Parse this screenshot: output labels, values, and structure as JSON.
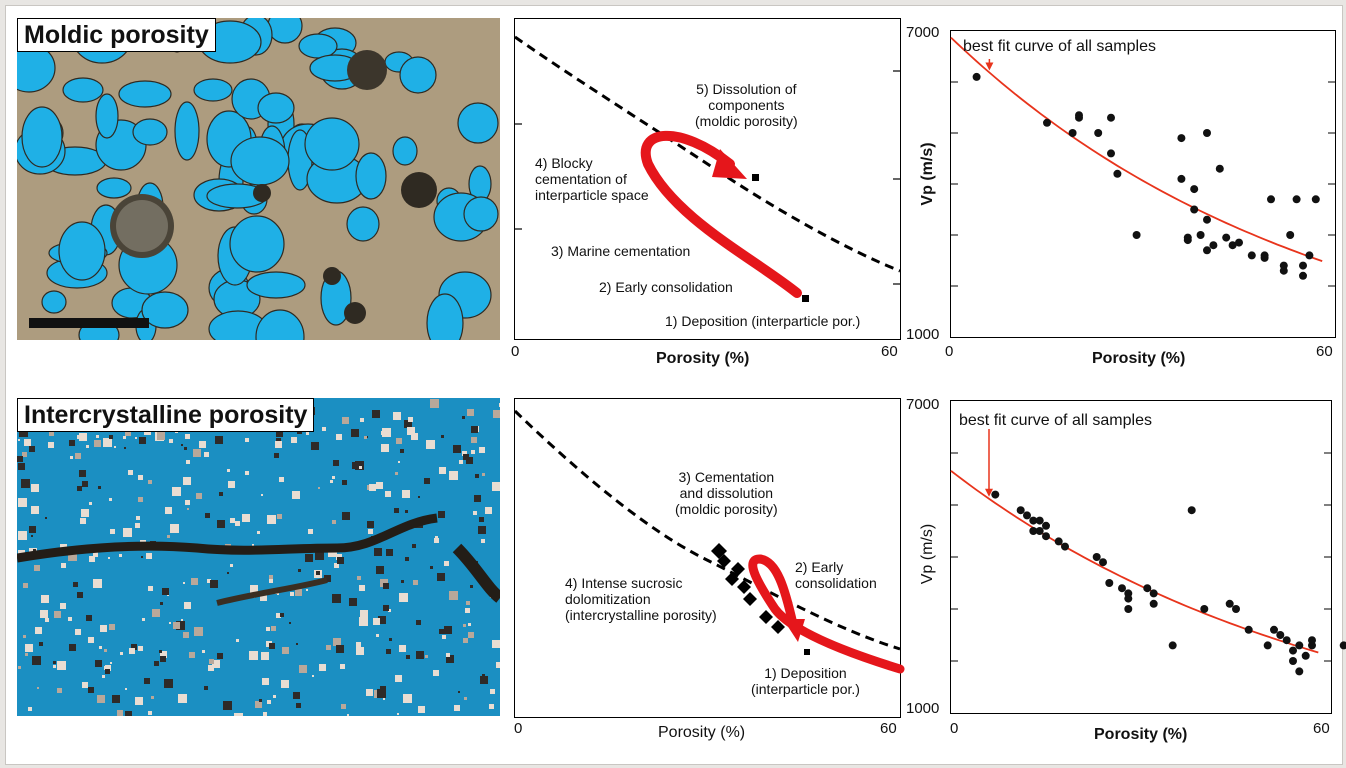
{
  "panels": {
    "top": {
      "photo_label": "Moldic  porosity",
      "path_plot": {
        "labels": {
          "step5": [
            "5) Dissolution of",
            "components",
            "(moldic porosity)"
          ],
          "step4": [
            "4) Blocky",
            "cementation of",
            "interparticle space"
          ],
          "step3": [
            "3) Marine cementation"
          ],
          "step2": [
            "2) Early consolidation"
          ],
          "step1": [
            "1) Deposition (interparticle por.)"
          ]
        },
        "x_min": "0",
        "x_max": "60",
        "xlabel": "Porosity (%)"
      },
      "scatter": {
        "annotation": "best fit curve of all samples",
        "ylabel": "Vp (m/s)",
        "y_max": "7000",
        "y_min": "1000",
        "x_min": "0",
        "x_max": "60",
        "xlabel": "Porosity (%)"
      }
    },
    "bottom": {
      "photo_label": "Intercrystalline porosity",
      "path_plot": {
        "labels": {
          "step3": [
            "3) Cementation",
            "and dissolution",
            "(moldic porosity)"
          ],
          "step2": [
            "2) Early",
            "consolidation"
          ],
          "step4": [
            "4) Intense sucrosic",
            "dolomitization",
            "(intercrystalline porosity)"
          ],
          "step1": [
            "1) Deposition",
            "(interparticle por.)"
          ]
        },
        "x_min": "0",
        "x_max": "60",
        "xlabel": "Porosity (%)"
      },
      "scatter": {
        "annotation": "best fit curve of all samples",
        "ylabel": "Vp (m/s)",
        "y_max": "7000",
        "y_min": "1000",
        "x_min": "0",
        "x_max": "60",
        "xlabel": "Porosity (%)"
      }
    }
  },
  "chart_data": [
    {
      "type": "scatter",
      "ylabel": "Vp (m/s)",
      "xlabel": "Porosity (%)",
      "xlim": [
        0,
        60
      ],
      "ylim": [
        1000,
        7000
      ],
      "points": [
        [
          4,
          6100
        ],
        [
          15,
          5200
        ],
        [
          19,
          5000
        ],
        [
          20,
          5300
        ],
        [
          20,
          5350
        ],
        [
          23,
          5000
        ],
        [
          25,
          4600
        ],
        [
          25,
          5300
        ],
        [
          26,
          4200
        ],
        [
          29,
          3000
        ],
        [
          36,
          4900
        ],
        [
          36,
          4100
        ],
        [
          37,
          2900
        ],
        [
          37,
          2950
        ],
        [
          38,
          3500
        ],
        [
          38,
          3900
        ],
        [
          39,
          3000
        ],
        [
          40,
          2700
        ],
        [
          40,
          3300
        ],
        [
          40,
          5000
        ],
        [
          41,
          2800
        ],
        [
          42,
          4300
        ],
        [
          43,
          2950
        ],
        [
          44,
          2800
        ],
        [
          45,
          2850
        ],
        [
          47,
          2600
        ],
        [
          49,
          2550
        ],
        [
          49,
          2600
        ],
        [
          50,
          3700
        ],
        [
          52,
          2300
        ],
        [
          52,
          2400
        ],
        [
          53,
          3000
        ],
        [
          54,
          3700
        ],
        [
          55,
          2200
        ],
        [
          55,
          2400
        ],
        [
          56,
          2600
        ],
        [
          57,
          3700
        ]
      ],
      "colors": {
        "points": "#111111",
        "fit": "#e8341c"
      }
    },
    {
      "type": "scatter",
      "ylabel": "Vp (m/s)",
      "xlabel": "Porosity (%)",
      "xlim": [
        0,
        60
      ],
      "ylim": [
        1000,
        7000
      ],
      "points": [
        [
          7,
          5200
        ],
        [
          11,
          4900
        ],
        [
          12,
          4800
        ],
        [
          13,
          4700
        ],
        [
          13,
          4500
        ],
        [
          14,
          4500
        ],
        [
          14,
          4700
        ],
        [
          15,
          4600
        ],
        [
          15,
          4400
        ],
        [
          17,
          4300
        ],
        [
          18,
          4200
        ],
        [
          23,
          4000
        ],
        [
          24,
          3900
        ],
        [
          25,
          3500
        ],
        [
          27,
          3400
        ],
        [
          28,
          3300
        ],
        [
          28,
          3000
        ],
        [
          28,
          3200
        ],
        [
          31,
          3400
        ],
        [
          32,
          3300
        ],
        [
          32,
          3100
        ],
        [
          35,
          2300
        ],
        [
          38,
          4900
        ],
        [
          40,
          3000
        ],
        [
          44,
          3100
        ],
        [
          45,
          3000
        ],
        [
          47,
          2600
        ],
        [
          50,
          2300
        ],
        [
          51,
          2600
        ],
        [
          52,
          2500
        ],
        [
          53,
          2400
        ],
        [
          54,
          2200
        ],
        [
          54,
          2000
        ],
        [
          55,
          2300
        ],
        [
          55,
          1800
        ],
        [
          56,
          2100
        ],
        [
          57,
          2300
        ],
        [
          57,
          2400
        ],
        [
          62,
          2300
        ]
      ],
      "colors": {
        "points": "#111111",
        "fit": "#e8341c"
      }
    }
  ],
  "colors": {
    "pore_blue": "#1fb0e6",
    "matrix": "#c8b89a",
    "dark_grain": "#3c362c",
    "arrow_red": "#e5161b",
    "fit_red": "#e8341c"
  }
}
